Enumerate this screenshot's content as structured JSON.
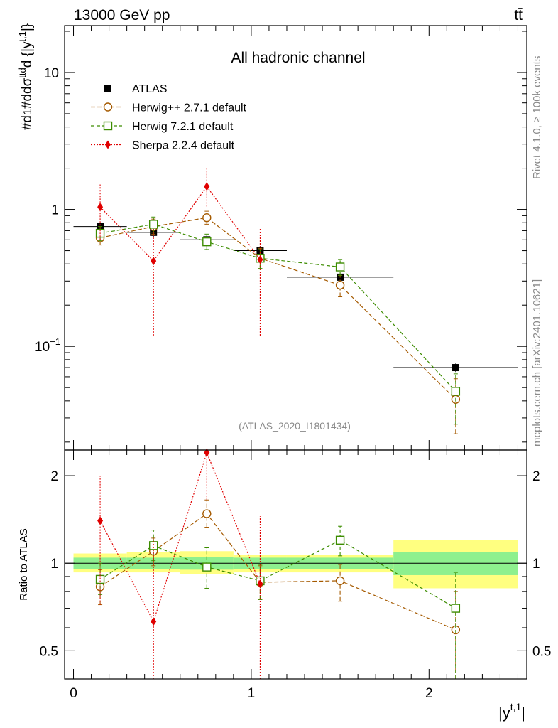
{
  "chart_data": [
    {
      "panel": "main",
      "type": "scatter",
      "title": "All hadronic channel",
      "header_left": "13000 GeV pp",
      "header_right": "tt̄",
      "ylabel": "#d1/σ#d dσ^ttd / d {|y^t,1|}",
      "ylabel_parts": {
        "prefix": "#d",
        "frac1_num": "1",
        "frac1_den": "σ",
        "mid": "#d",
        "frac2_num": "dσ",
        "frac2_num_sup": "ttd",
        "frac2_den": "d {|y",
        "frac2_den_sup": "t,1",
        "frac2_den_end": "|}"
      },
      "yscale": "log",
      "ylim": [
        0.0175,
        22
      ],
      "xlim": [
        -0.05,
        2.55
      ],
      "ytick_labels": [
        {
          "value": 0.1,
          "base": "10",
          "exp": "−1"
        },
        {
          "value": 1,
          "base": "1",
          "exp": ""
        },
        {
          "value": 10,
          "base": "10",
          "exp": ""
        }
      ],
      "annotation": "(ATLAS_2020_I1801434)",
      "series": [
        {
          "name": "ATLAS",
          "style": "data",
          "color": "#000000",
          "x": [
            0.15,
            0.45,
            0.75,
            1.05,
            1.5,
            2.15
          ],
          "xerr": [
            0.15,
            0.15,
            0.15,
            0.15,
            0.3,
            0.35
          ],
          "y": [
            0.75,
            0.68,
            0.6,
            0.5,
            0.32,
            0.07
          ],
          "yerr": [
            0.05,
            0.05,
            0.04,
            0.04,
            0.02,
            0.005
          ]
        },
        {
          "name": "Herwig++ 2.7.1 default",
          "style": "circle",
          "color": "#a55a00",
          "dash": "6,3",
          "x": [
            0.15,
            0.45,
            0.75,
            1.05,
            1.5,
            2.15
          ],
          "y": [
            0.62,
            0.75,
            0.87,
            0.44,
            0.28,
            0.041
          ],
          "ylo": [
            0.55,
            0.66,
            0.78,
            0.37,
            0.23,
            0.023
          ],
          "yhi": [
            0.7,
            0.85,
            0.97,
            0.52,
            0.33,
            0.058
          ]
        },
        {
          "name": "Herwig 7.2.1 default",
          "style": "square",
          "color": "#3c8c00",
          "dash": "5,3",
          "x": [
            0.15,
            0.45,
            0.75,
            1.05,
            1.5,
            2.15
          ],
          "y": [
            0.67,
            0.78,
            0.58,
            0.44,
            0.38,
            0.047
          ],
          "ylo": [
            0.59,
            0.68,
            0.51,
            0.37,
            0.33,
            0.027
          ],
          "yhi": [
            0.75,
            0.88,
            0.66,
            0.51,
            0.43,
            0.063
          ]
        },
        {
          "name": "Sherpa 2.2.4 default",
          "style": "diamond",
          "color": "#e00000",
          "dash": "2,2",
          "x": [
            0.15,
            0.45,
            0.75,
            1.05
          ],
          "y": [
            1.04,
            0.42,
            1.47,
            0.43
          ],
          "ylo": [
            0.6,
            0.12,
            1.05,
            0.12
          ],
          "yhi": [
            1.52,
            0.72,
            2.05,
            0.72
          ]
        }
      ]
    },
    {
      "panel": "ratio",
      "type": "scatter",
      "ylabel": "Ratio to ATLAS",
      "xlabel": "|y",
      "xlabel_sup": "t,1",
      "xlabel_end": "|",
      "yscale": "log",
      "ylim": [
        0.4,
        2.45
      ],
      "xlim": [
        -0.05,
        2.55
      ],
      "xticks": [
        0,
        1,
        2
      ],
      "xtick_labels": [
        "0",
        "1",
        "2"
      ],
      "yticks": [
        0.5,
        1,
        2
      ],
      "ytick_labels": [
        "0.5",
        "1",
        "2"
      ],
      "bands": [
        {
          "x0": 0.0,
          "x1": 0.3,
          "green": [
            0.955,
            1.045
          ],
          "yellow": [
            0.93,
            1.08
          ]
        },
        {
          "x0": 0.3,
          "x1": 0.6,
          "green": [
            0.955,
            1.045
          ],
          "yellow": [
            0.93,
            1.09
          ]
        },
        {
          "x0": 0.6,
          "x1": 0.9,
          "green": [
            0.95,
            1.05
          ],
          "yellow": [
            0.92,
            1.1
          ]
        },
        {
          "x0": 0.9,
          "x1": 1.2,
          "green": [
            0.955,
            1.045
          ],
          "yellow": [
            0.93,
            1.07
          ]
        },
        {
          "x0": 1.2,
          "x1": 1.8,
          "green": [
            0.955,
            1.045
          ],
          "yellow": [
            0.93,
            1.07
          ]
        },
        {
          "x0": 1.8,
          "x1": 2.5,
          "green": [
            0.91,
            1.09
          ],
          "yellow": [
            0.82,
            1.2
          ]
        }
      ],
      "series": [
        {
          "name": "Herwig++ 2.7.1 default",
          "style": "circle",
          "color": "#a55a00",
          "dash": "6,3",
          "x": [
            0.15,
            0.45,
            0.75,
            1.05,
            1.5,
            2.15
          ],
          "y": [
            0.83,
            1.1,
            1.48,
            0.86,
            0.87,
            0.59
          ],
          "ylo": [
            0.72,
            0.98,
            1.33,
            0.75,
            0.74,
            0.35
          ],
          "yhi": [
            0.95,
            1.22,
            1.65,
            0.98,
            0.99,
            0.8
          ]
        },
        {
          "name": "Herwig 7.2.1 default",
          "style": "square",
          "color": "#3c8c00",
          "dash": "5,3",
          "x": [
            0.15,
            0.45,
            0.75,
            1.05,
            1.5,
            2.15
          ],
          "y": [
            0.88,
            1.15,
            0.97,
            0.87,
            1.2,
            0.7
          ],
          "ylo": [
            0.78,
            1.02,
            0.82,
            0.75,
            1.06,
            0.38
          ],
          "yhi": [
            1.0,
            1.3,
            1.13,
            0.99,
            1.34,
            0.93
          ]
        },
        {
          "name": "Sherpa 2.2.4 default",
          "style": "diamond",
          "color": "#e00000",
          "dash": "2,2",
          "x": [
            0.15,
            0.45,
            0.75,
            1.05
          ],
          "y": [
            1.4,
            0.63,
            2.4,
            0.85
          ],
          "ylo": [
            0.72,
            0.3,
            1.65,
            0.3
          ],
          "yhi": [
            2.0,
            1.2,
            2.45,
            1.45
          ]
        }
      ]
    }
  ],
  "side_text": {
    "rivet": "Rivet 4.1.0, ≥ 100k events",
    "mcplots": "mcplots.cern.ch [arXiv:2401.10621]"
  }
}
